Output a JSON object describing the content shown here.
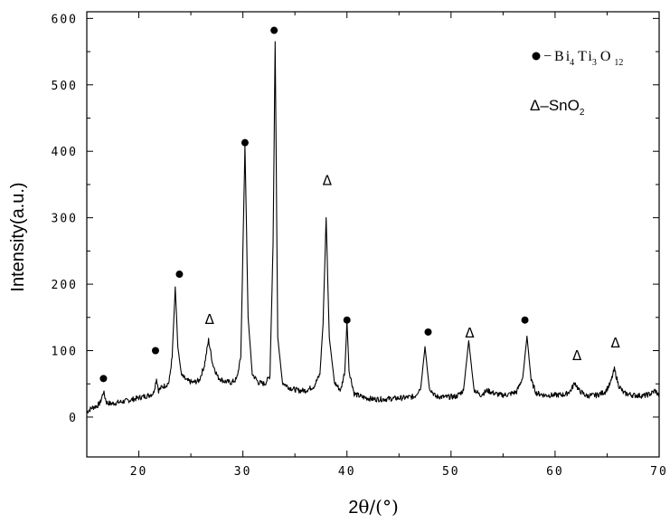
{
  "chart_data": {
    "type": "line",
    "xlabel_prefix": "2",
    "xlabel_theta": "θ",
    "xlabel_suffix": "/(°)",
    "ylabel": "Intensity(a.u.)",
    "xlim": [
      15,
      70
    ],
    "ylim": [
      -60,
      610
    ],
    "x_ticks": [
      20,
      30,
      40,
      50,
      60,
      70
    ],
    "y_ticks": [
      0,
      100,
      200,
      300,
      400,
      500,
      600
    ],
    "legend": {
      "bto": {
        "dash": "−",
        "el1": "B",
        "el1b": "i",
        "el1_sub": "4",
        "el2": "T",
        "el2b": "i",
        "el2_sub": "3",
        "el3": "O",
        "el3_sub": "12"
      },
      "sno2": {
        "delta": "Δ",
        "dash": "–",
        "main": "SnO",
        "sub": "2"
      }
    },
    "series": [
      {
        "values": [
          [
            15.0,
            8
          ],
          [
            15.5,
            14
          ],
          [
            16.0,
            17
          ],
          [
            16.3,
            22
          ],
          [
            16.6,
            38
          ],
          [
            16.9,
            22
          ],
          [
            17.3,
            20
          ],
          [
            18.0,
            22
          ],
          [
            18.7,
            24
          ],
          [
            19.5,
            27
          ],
          [
            20.0,
            29
          ],
          [
            20.5,
            31
          ],
          [
            21.0,
            33
          ],
          [
            21.4,
            36
          ],
          [
            21.7,
            58
          ],
          [
            21.9,
            40
          ],
          [
            22.2,
            45
          ],
          [
            22.6,
            48
          ],
          [
            22.9,
            52
          ],
          [
            23.2,
            90
          ],
          [
            23.5,
            196
          ],
          [
            23.75,
            105
          ],
          [
            24.1,
            63
          ],
          [
            24.6,
            55
          ],
          [
            25.2,
            52
          ],
          [
            25.8,
            55
          ],
          [
            26.3,
            78
          ],
          [
            26.7,
            116
          ],
          [
            27.1,
            80
          ],
          [
            27.6,
            60
          ],
          [
            28.2,
            54
          ],
          [
            28.9,
            52
          ],
          [
            29.4,
            57
          ],
          [
            29.8,
            90
          ],
          [
            30.2,
            410
          ],
          [
            30.5,
            150
          ],
          [
            30.9,
            65
          ],
          [
            31.5,
            52
          ],
          [
            32.1,
            50
          ],
          [
            32.6,
            62
          ],
          [
            32.9,
            260
          ],
          [
            33.1,
            565
          ],
          [
            33.35,
            120
          ],
          [
            33.8,
            52
          ],
          [
            34.5,
            44
          ],
          [
            35.3,
            40
          ],
          [
            36.0,
            40
          ],
          [
            36.8,
            46
          ],
          [
            37.4,
            64
          ],
          [
            37.7,
            140
          ],
          [
            38.0,
            300
          ],
          [
            38.3,
            120
          ],
          [
            38.8,
            52
          ],
          [
            39.4,
            40
          ],
          [
            39.8,
            70
          ],
          [
            40.0,
            145
          ],
          [
            40.2,
            70
          ],
          [
            40.7,
            35
          ],
          [
            41.5,
            30
          ],
          [
            42.5,
            27
          ],
          [
            43.5,
            27
          ],
          [
            44.5,
            28
          ],
          [
            45.5,
            29
          ],
          [
            46.5,
            31
          ],
          [
            47.1,
            45
          ],
          [
            47.5,
            106
          ],
          [
            47.9,
            45
          ],
          [
            48.5,
            31
          ],
          [
            49.5,
            30
          ],
          [
            50.5,
            31
          ],
          [
            51.2,
            40
          ],
          [
            51.7,
            115
          ],
          [
            52.2,
            42
          ],
          [
            52.8,
            33
          ],
          [
            53.5,
            40
          ],
          [
            54.1,
            36
          ],
          [
            54.8,
            33
          ],
          [
            55.5,
            34
          ],
          [
            56.3,
            38
          ],
          [
            56.9,
            60
          ],
          [
            57.3,
            122
          ],
          [
            57.7,
            55
          ],
          [
            58.2,
            36
          ],
          [
            59.0,
            33
          ],
          [
            60.0,
            33
          ],
          [
            61.0,
            34
          ],
          [
            61.5,
            40
          ],
          [
            61.9,
            52
          ],
          [
            62.3,
            40
          ],
          [
            63.0,
            32
          ],
          [
            64.0,
            33
          ],
          [
            64.8,
            38
          ],
          [
            65.3,
            50
          ],
          [
            65.7,
            72
          ],
          [
            66.1,
            48
          ],
          [
            66.6,
            36
          ],
          [
            67.5,
            33
          ],
          [
            68.5,
            32
          ],
          [
            69.2,
            35
          ],
          [
            69.6,
            40
          ],
          [
            70.0,
            32
          ]
        ]
      }
    ],
    "markers_bto": [
      [
        16.6,
        58
      ],
      [
        21.6,
        100
      ],
      [
        23.9,
        215
      ],
      [
        30.2,
        413
      ],
      [
        33.0,
        582
      ],
      [
        40.0,
        146
      ],
      [
        47.8,
        128
      ],
      [
        57.1,
        146
      ]
    ],
    "markers_sno2": [
      [
        26.8,
        140
      ],
      [
        38.1,
        349
      ],
      [
        51.8,
        120
      ],
      [
        62.1,
        86
      ],
      [
        65.8,
        105
      ]
    ],
    "marker_symbol_sno2": "Δ"
  }
}
